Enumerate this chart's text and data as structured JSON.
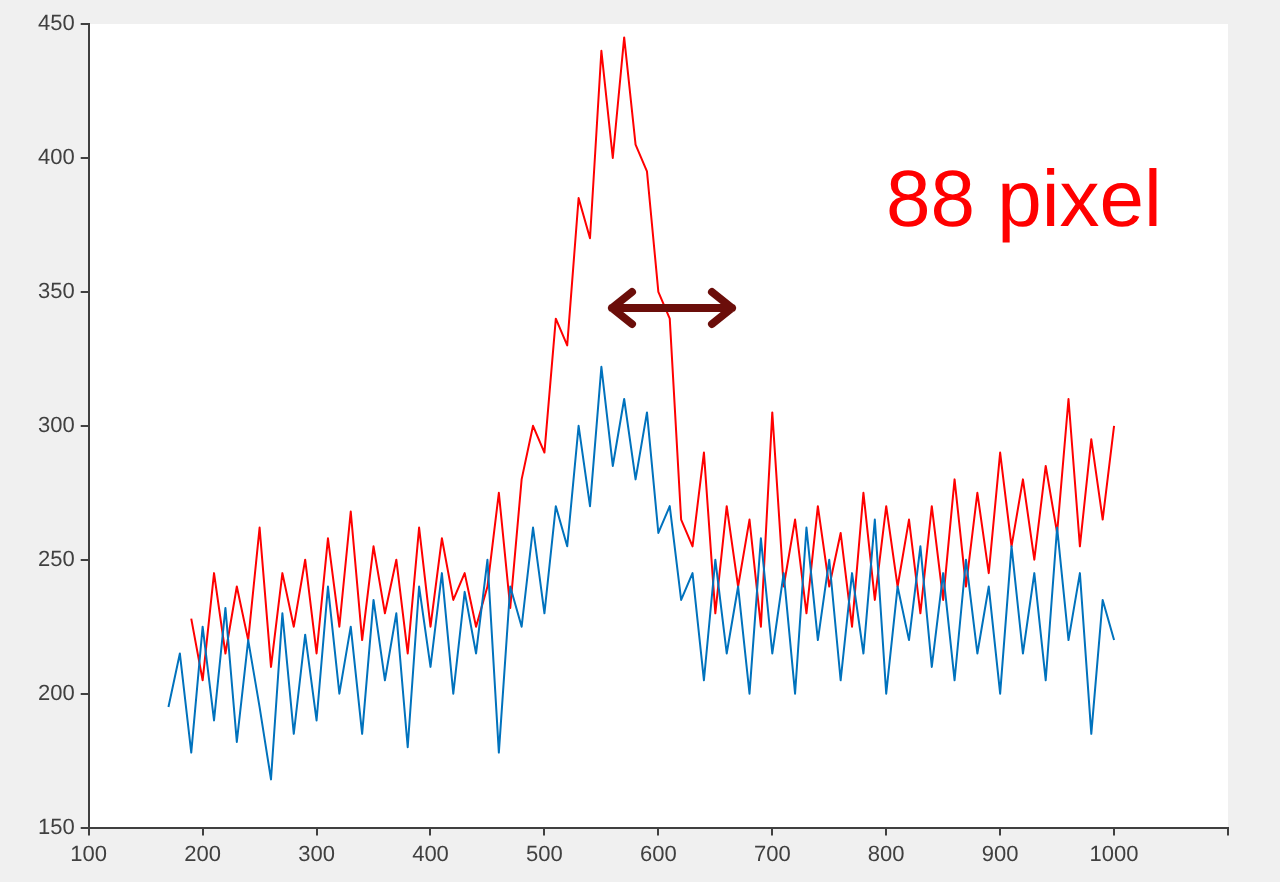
{
  "chart_data": {
    "type": "line",
    "annotations": [
      "88 pixel"
    ],
    "xlim": [
      100,
      1100
    ],
    "xticks": [
      100,
      200,
      300,
      400,
      500,
      600,
      700,
      800,
      900,
      1000,
      {
        "value": 1100,
        "label": null
      }
    ],
    "ylim": [
      150,
      450
    ],
    "yticks": [
      150,
      200,
      250,
      300,
      350,
      400,
      450
    ],
    "grid": false,
    "legend": false,
    "marker": "none",
    "line_style": "solid",
    "series": [
      {
        "color": "#0072bd",
        "x": [
          170,
          180,
          190,
          200,
          210,
          220,
          230,
          240,
          250,
          260,
          270,
          280,
          290,
          300,
          310,
          320,
          330,
          340,
          350,
          360,
          370,
          380,
          390,
          400,
          410,
          420,
          430,
          440,
          450,
          460,
          470,
          480,
          490,
          500,
          510,
          520,
          530,
          540,
          550,
          560,
          570,
          580,
          590,
          600,
          610,
          620,
          630,
          640,
          650,
          660,
          670,
          680,
          690,
          700,
          710,
          720,
          730,
          740,
          750,
          760,
          770,
          780,
          790,
          800,
          810,
          820,
          830,
          840,
          850,
          860,
          870,
          880,
          890,
          900,
          910,
          920,
          930,
          940,
          950,
          960,
          970,
          980,
          990,
          1000
        ],
        "values": [
          195,
          215,
          178,
          225,
          190,
          232,
          182,
          220,
          195,
          168,
          230,
          185,
          222,
          190,
          240,
          200,
          225,
          185,
          235,
          205,
          230,
          180,
          240,
          210,
          245,
          200,
          238,
          215,
          250,
          178,
          240,
          225,
          262,
          230,
          270,
          255,
          300,
          270,
          322,
          285,
          310,
          280,
          305,
          260,
          270,
          235,
          245,
          205,
          250,
          215,
          240,
          200,
          258,
          215,
          245,
          200,
          262,
          220,
          250,
          205,
          245,
          215,
          265,
          200,
          240,
          220,
          255,
          210,
          245,
          205,
          250,
          215,
          240,
          200,
          255,
          215,
          245,
          205,
          262,
          220,
          245,
          185,
          235,
          220
        ]
      },
      {
        "color": "#ff0000",
        "x": [
          190,
          200,
          210,
          220,
          230,
          240,
          250,
          260,
          270,
          280,
          290,
          300,
          310,
          320,
          330,
          340,
          350,
          360,
          370,
          380,
          390,
          400,
          410,
          420,
          430,
          440,
          450,
          460,
          470,
          480,
          490,
          500,
          510,
          520,
          530,
          540,
          550,
          560,
          570,
          580,
          590,
          600,
          610,
          620,
          630,
          640,
          650,
          660,
          670,
          680,
          690,
          700,
          710,
          720,
          730,
          740,
          750,
          760,
          770,
          780,
          790,
          800,
          810,
          820,
          830,
          840,
          850,
          860,
          870,
          880,
          890,
          900,
          910,
          920,
          930,
          940,
          950,
          960,
          970,
          980,
          990,
          1000
        ],
        "values": [
          228,
          205,
          245,
          215,
          240,
          220,
          262,
          210,
          245,
          225,
          250,
          215,
          258,
          225,
          268,
          220,
          255,
          230,
          250,
          215,
          262,
          225,
          258,
          235,
          245,
          225,
          240,
          275,
          232,
          280,
          300,
          290,
          340,
          330,
          385,
          370,
          440,
          400,
          445,
          405,
          395,
          350,
          340,
          265,
          255,
          290,
          230,
          270,
          240,
          265,
          225,
          305,
          240,
          265,
          230,
          270,
          240,
          260,
          225,
          275,
          235,
          270,
          240,
          265,
          230,
          270,
          235,
          280,
          240,
          275,
          245,
          290,
          255,
          280,
          250,
          285,
          260,
          310,
          255,
          295,
          265,
          300
        ]
      }
    ]
  }
}
